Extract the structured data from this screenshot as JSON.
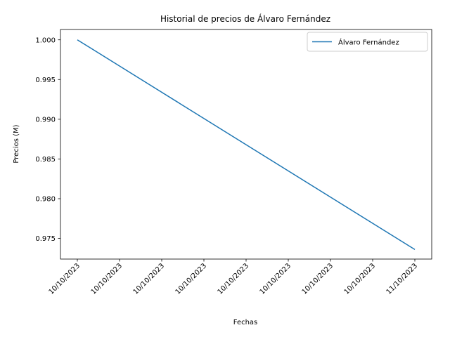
{
  "chart_data": {
    "type": "line",
    "title": "Historial de precios de Álvaro Fernández",
    "xlabel": "Fechas",
    "ylabel": "Precios (M)",
    "x_tick_labels": [
      "10/10/2023",
      "10/10/2023",
      "10/10/2023",
      "10/10/2023",
      "10/10/2023",
      "10/10/2023",
      "10/10/2023",
      "10/10/2023",
      "11/10/2023"
    ],
    "y_ticks": [
      0.975,
      0.98,
      0.985,
      0.99,
      0.995,
      1.0
    ],
    "y_tick_labels": [
      "0.975",
      "0.980",
      "0.985",
      "0.990",
      "0.995",
      "1.000"
    ],
    "ylim": [
      0.9724,
      1.0013
    ],
    "grid": false,
    "legend_position": "upper right",
    "series": [
      {
        "name": "Álvaro Fernández",
        "color": "#1f77b4",
        "x": [
          0,
          1
        ],
        "values": [
          1.0,
          0.9736
        ]
      }
    ]
  }
}
